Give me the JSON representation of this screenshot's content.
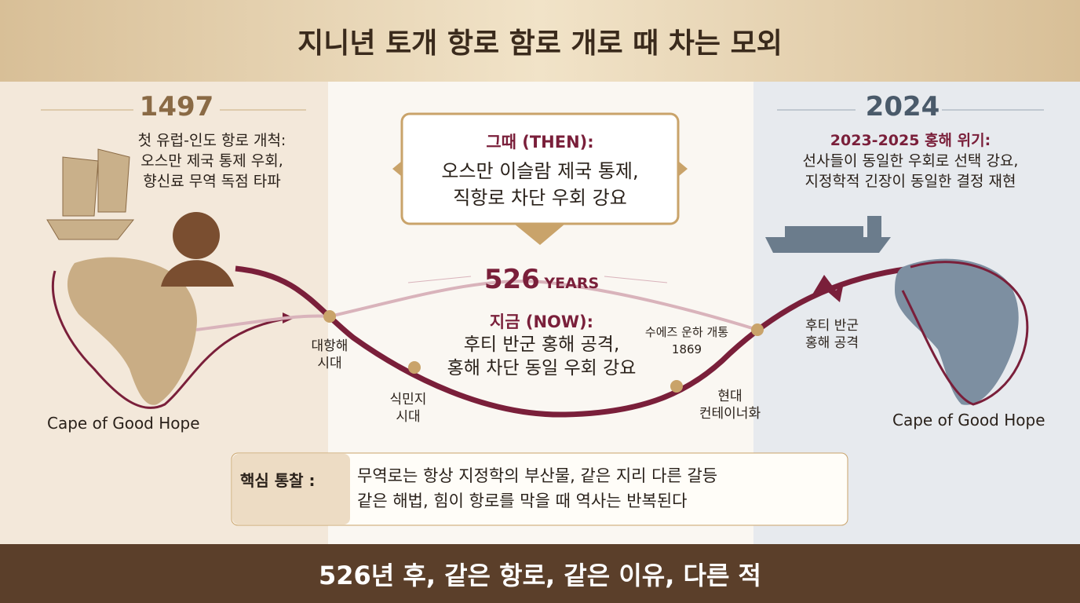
{
  "header": {
    "title": "지니년 토개 항로 함로 개로 때 차는 모외"
  },
  "left": {
    "year": "1497",
    "lines": [
      "첫 유럽-인도 항로 개척:",
      "오스만 제국 통제 우회,",
      "향신료 무역 독점 타파"
    ],
    "map_label": "Cape of Good Hope"
  },
  "then": {
    "heading": "그때 (THEN):",
    "lines": [
      "오스만 이슬람 제국 통제,",
      "직항로 차단 우회 강요"
    ]
  },
  "span": {
    "number": "526",
    "unit": "YEARS"
  },
  "now": {
    "heading": "지금 (NOW):",
    "lines": [
      "후티 반군 홍해 공격,",
      "홍해 차단 동일 우회 강요"
    ]
  },
  "timeline": {
    "nodes": [
      {
        "label": [
          "대항해",
          "시대"
        ]
      },
      {
        "label": [
          "식민지",
          "시대"
        ]
      },
      {
        "label": [
          "수에즈 운하 개통",
          "1869"
        ]
      },
      {
        "label": [
          "현대",
          "컨테이너화"
        ]
      }
    ]
  },
  "right": {
    "year": "2024",
    "heading": "2023-2025 홍해 위기:",
    "lines": [
      "선사들이 동일한 우회로 선택 강요,",
      "지정학적 긴장이 동일한 결정 재현"
    ],
    "attack_label": [
      "후티 반군",
      "홍해 공격"
    ],
    "map_label": "Cape of Good Hope"
  },
  "insight": {
    "label": "핵심 통찰 :",
    "lines": [
      "무역로는 항상 지정학의 부산물, 같은 지리 다른 갈등",
      "같은 해법, 힘이 항로를 막을 때 역사는 반복된다"
    ]
  },
  "footer": {
    "text": "526년 후, 같은 항로, 같은 이유, 다른 적"
  }
}
